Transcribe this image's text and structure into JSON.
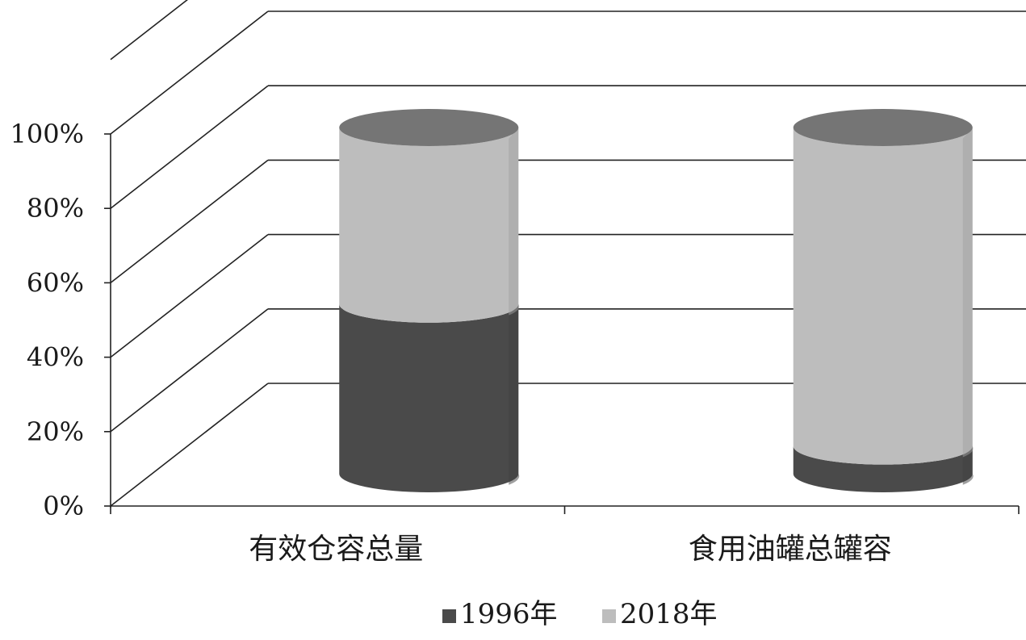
{
  "chart_data": {
    "type": "bar",
    "subtype": "stacked-100-percent-cylinder",
    "title": "",
    "xlabel": "",
    "ylabel": "",
    "categories": [
      "有效仓容总量",
      "食用油罐总罐容"
    ],
    "series": [
      {
        "name": "1996年",
        "values": [
          49,
          8
        ],
        "color": "#4a4a4a"
      },
      {
        "name": "2018年",
        "values": [
          51,
          92
        ],
        "color": "#bdbdbd"
      }
    ],
    "ylim": [
      0,
      100
    ],
    "yticks": [
      "0%",
      "20%",
      "40%",
      "60%",
      "80%",
      "100%"
    ],
    "grid": true,
    "legend_position": "bottom-center"
  }
}
